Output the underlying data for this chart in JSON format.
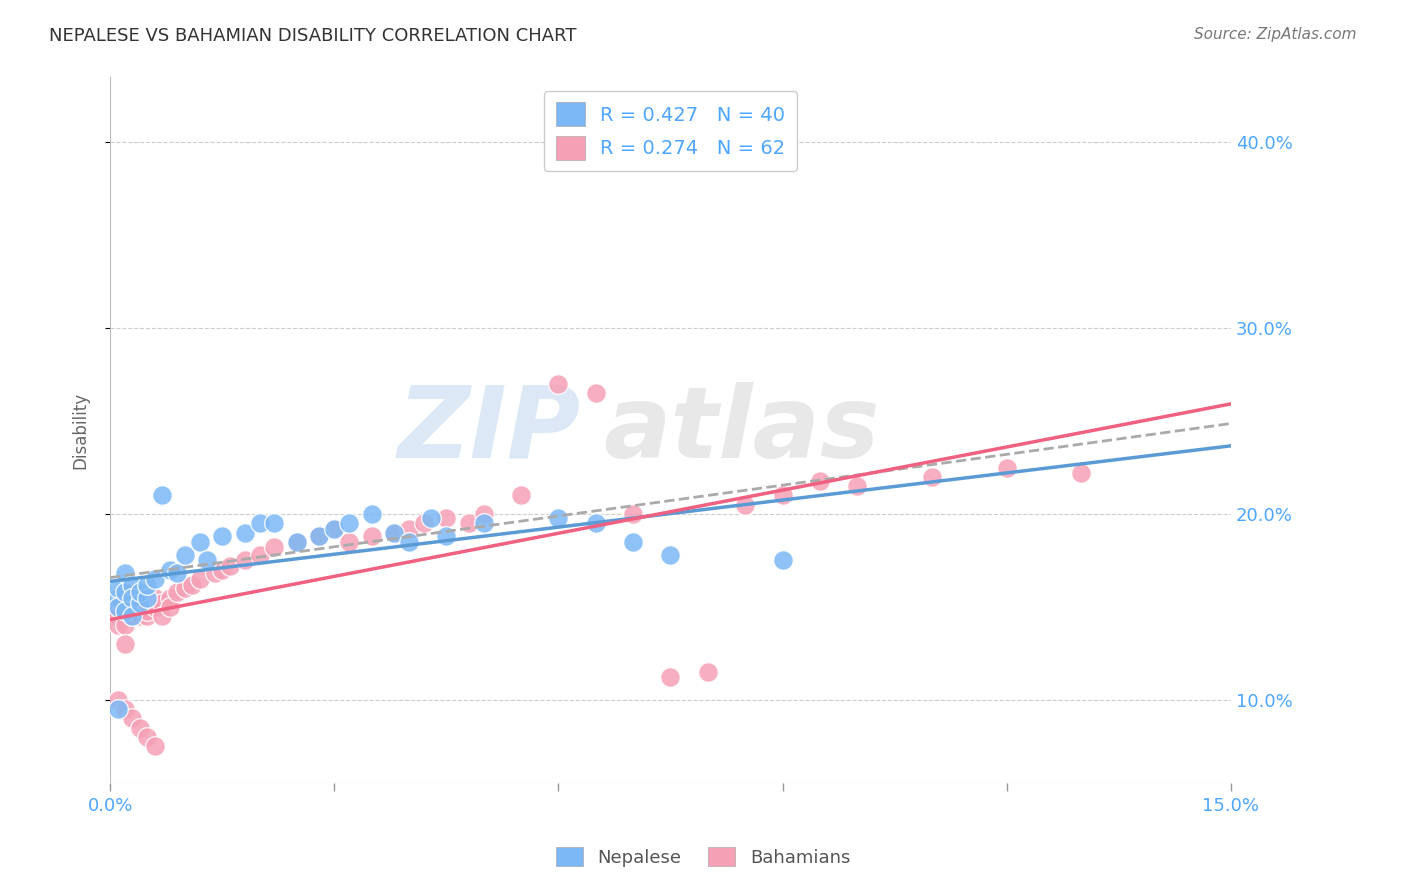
{
  "title": "NEPALESE VS BAHAMIAN DISABILITY CORRELATION CHART",
  "source": "Source: ZipAtlas.com",
  "ylabel": "Disability",
  "ytick_labels": [
    "10.0%",
    "20.0%",
    "30.0%",
    "40.0%"
  ],
  "ytick_values": [
    0.1,
    0.2,
    0.3,
    0.4
  ],
  "xlim": [
    0.0,
    0.15
  ],
  "ylim": [
    0.055,
    0.435
  ],
  "background_color": "#ffffff",
  "grid_color": "#c8c8c8",
  "axis_color": "#4da6ff",
  "nepalese_color": "#7bb8f5",
  "bahamian_color": "#f5a0b5",
  "trend_nepalese_color": "#5b9bd5",
  "trend_bahamian_color": "#f06080",
  "trend_nepalese_dashed_color": "#cccccc",
  "R_nepalese": 0.427,
  "N_nepalese": 40,
  "R_bahamian": 0.274,
  "N_bahamian": 62,
  "nepalese_x": [
    0.001,
    0.001,
    0.001,
    0.002,
    0.002,
    0.002,
    0.003,
    0.003,
    0.003,
    0.004,
    0.004,
    0.005,
    0.005,
    0.006,
    0.007,
    0.008,
    0.009,
    0.01,
    0.012,
    0.013,
    0.015,
    0.018,
    0.02,
    0.022,
    0.025,
    0.028,
    0.03,
    0.032,
    0.035,
    0.038,
    0.04,
    0.043,
    0.045,
    0.05,
    0.06,
    0.065,
    0.07,
    0.075,
    0.09,
    0.001
  ],
  "nepalese_y": [
    0.155,
    0.16,
    0.15,
    0.158,
    0.168,
    0.148,
    0.162,
    0.155,
    0.145,
    0.152,
    0.158,
    0.155,
    0.162,
    0.165,
    0.21,
    0.17,
    0.168,
    0.178,
    0.185,
    0.175,
    0.188,
    0.19,
    0.195,
    0.195,
    0.185,
    0.188,
    0.192,
    0.195,
    0.2,
    0.19,
    0.185,
    0.198,
    0.188,
    0.195,
    0.198,
    0.195,
    0.185,
    0.178,
    0.175,
    0.095
  ],
  "bahamian_x": [
    0.001,
    0.001,
    0.001,
    0.002,
    0.002,
    0.002,
    0.002,
    0.003,
    0.003,
    0.003,
    0.004,
    0.004,
    0.004,
    0.005,
    0.005,
    0.005,
    0.006,
    0.006,
    0.007,
    0.007,
    0.008,
    0.008,
    0.009,
    0.01,
    0.011,
    0.012,
    0.014,
    0.015,
    0.016,
    0.018,
    0.02,
    0.022,
    0.025,
    0.028,
    0.03,
    0.032,
    0.035,
    0.038,
    0.04,
    0.042,
    0.045,
    0.048,
    0.05,
    0.055,
    0.06,
    0.065,
    0.07,
    0.075,
    0.08,
    0.085,
    0.09,
    0.095,
    0.1,
    0.11,
    0.12,
    0.13,
    0.001,
    0.002,
    0.003,
    0.004,
    0.005,
    0.006
  ],
  "bahamian_y": [
    0.15,
    0.145,
    0.14,
    0.155,
    0.148,
    0.14,
    0.13,
    0.158,
    0.152,
    0.145,
    0.15,
    0.145,
    0.155,
    0.152,
    0.145,
    0.148,
    0.155,
    0.15,
    0.152,
    0.145,
    0.155,
    0.15,
    0.158,
    0.16,
    0.162,
    0.165,
    0.168,
    0.17,
    0.172,
    0.175,
    0.178,
    0.182,
    0.185,
    0.188,
    0.192,
    0.185,
    0.188,
    0.19,
    0.192,
    0.195,
    0.198,
    0.195,
    0.2,
    0.21,
    0.27,
    0.265,
    0.2,
    0.112,
    0.115,
    0.205,
    0.21,
    0.218,
    0.215,
    0.22,
    0.225,
    0.222,
    0.1,
    0.095,
    0.09,
    0.085,
    0.08,
    0.075
  ],
  "watermark_zip": "ZIP",
  "watermark_atlas": "atlas"
}
